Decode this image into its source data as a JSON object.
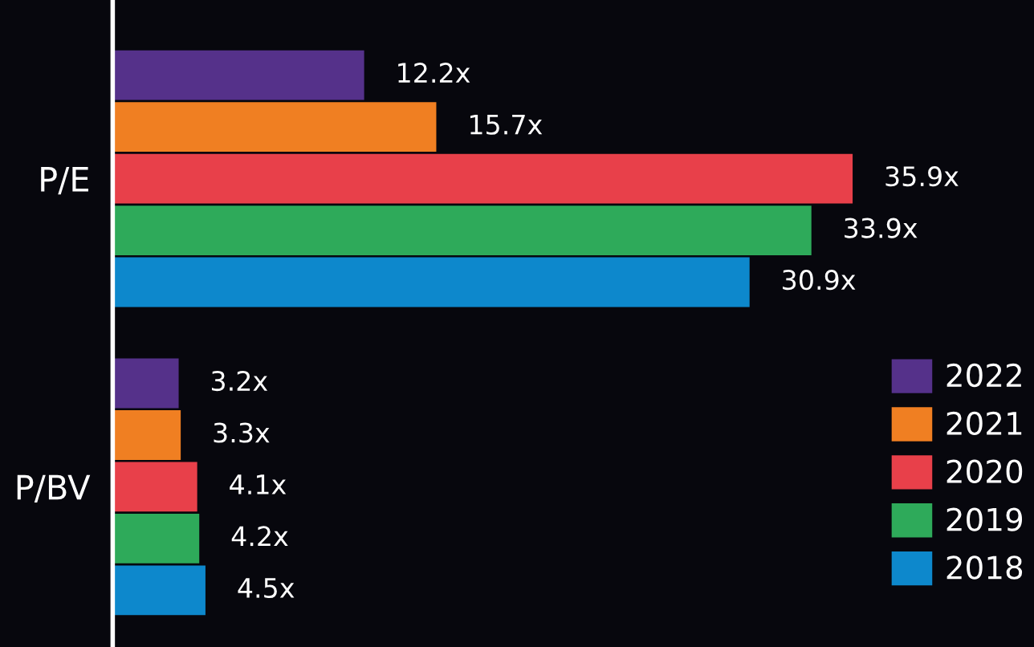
{
  "chart_data": {
    "type": "bar",
    "orientation": "horizontal",
    "categories": [
      "P/E",
      "P/BV"
    ],
    "series": [
      {
        "name": "2022",
        "color": "#55318a",
        "values": [
          12.2,
          3.2
        ],
        "value_labels": [
          "12.2x",
          "3.2x"
        ]
      },
      {
        "name": "2021",
        "color": "#f07f22",
        "values": [
          15.7,
          3.3
        ],
        "value_labels": [
          "15.7x",
          "3.3x"
        ]
      },
      {
        "name": "2020",
        "color": "#e8404a",
        "values": [
          35.9,
          4.1
        ],
        "value_labels": [
          "35.9x",
          "4.1x"
        ]
      },
      {
        "name": "2019",
        "color": "#2eaa5a",
        "values": [
          33.9,
          4.2
        ],
        "value_labels": [
          "33.9x",
          "4.2x"
        ]
      },
      {
        "name": "2018",
        "color": "#0d88cc",
        "values": [
          30.9,
          4.5
        ],
        "value_labels": [
          "30.9x",
          "4.5x"
        ]
      }
    ],
    "xlim": [
      0,
      44.7
    ],
    "tick_labels": "y",
    "legend": "right",
    "grid": false
  }
}
